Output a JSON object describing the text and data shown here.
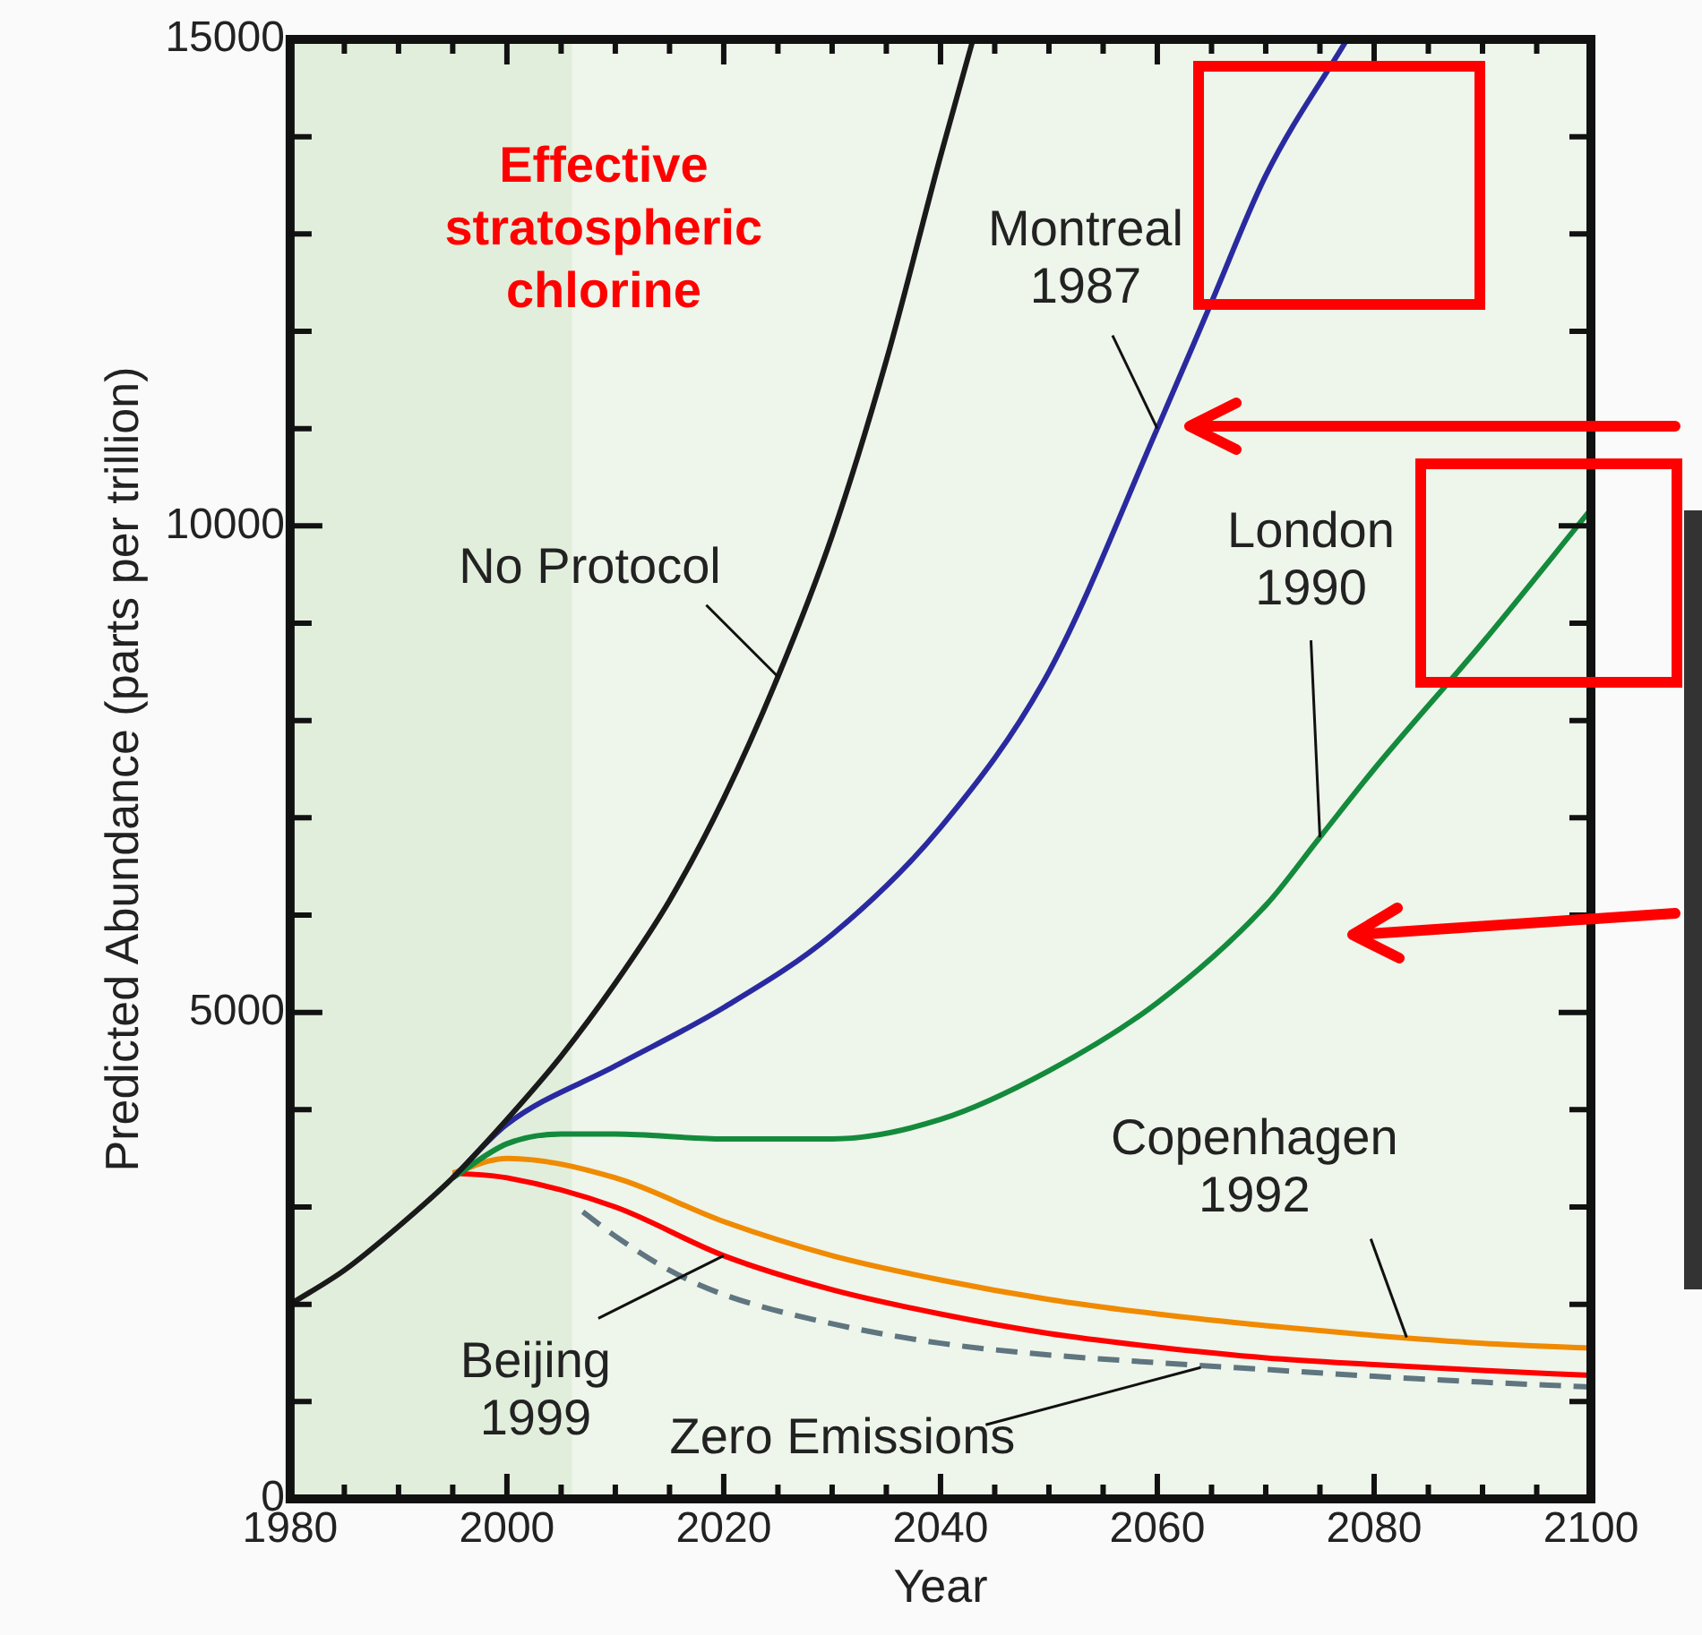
{
  "chart_data": {
    "type": "line",
    "title": "Effective stratospheric chlorine",
    "xlabel": "Year",
    "ylabel": "Predicted Abundance (parts per trillion)",
    "xlim": [
      1980,
      2100
    ],
    "xticks": [
      1980,
      {
        "value": 1985,
        "label": null
      },
      {
        "value": 1990,
        "label": null
      },
      {
        "value": 1995,
        "label": null
      },
      2000,
      {
        "value": 2005,
        "label": null
      },
      {
        "value": 2010,
        "label": null
      },
      {
        "value": 2015,
        "label": null
      },
      2020,
      {
        "value": 2025,
        "label": null
      },
      {
        "value": 2030,
        "label": null
      },
      {
        "value": 2035,
        "label": null
      },
      2040,
      {
        "value": 2045,
        "label": null
      },
      {
        "value": 2050,
        "label": null
      },
      {
        "value": 2055,
        "label": null
      },
      2060,
      {
        "value": 2065,
        "label": null
      },
      {
        "value": 2070,
        "label": null
      },
      {
        "value": 2075,
        "label": null
      },
      2080,
      {
        "value": 2085,
        "label": null
      },
      {
        "value": 2090,
        "label": null
      },
      {
        "value": 2095,
        "label": null
      },
      2100
    ],
    "ylim": [
      0,
      15000
    ],
    "yticks": [
      0,
      {
        "value": 1000,
        "label": null
      },
      {
        "value": 2000,
        "label": null
      },
      {
        "value": 3000,
        "label": null
      },
      {
        "value": 4000,
        "label": null
      },
      5000,
      {
        "value": 6000,
        "label": null
      },
      {
        "value": 7000,
        "label": null
      },
      {
        "value": 8000,
        "label": null
      },
      {
        "value": 9000,
        "label": null
      },
      10000,
      {
        "value": 11000,
        "label": null
      },
      {
        "value": 12000,
        "label": null
      },
      {
        "value": 13000,
        "label": null
      },
      {
        "value": 14000,
        "label": null
      },
      15000
    ],
    "grid": false,
    "legend": false,
    "marker": "none",
    "bands": [
      {
        "axis": "x",
        "from": 1980,
        "to": 2006,
        "color": "#e2eedc"
      }
    ],
    "series": [
      {
        "color": "#1a1a1a",
        "x": [
          1980,
          1985,
          1990,
          1995,
          2000,
          2005,
          2010,
          2015,
          2020,
          2025,
          2030,
          2035,
          2040,
          2043
        ],
        "values": [
          2000,
          2350,
          2800,
          3300,
          3900,
          4550,
          5300,
          6150,
          7200,
          8450,
          9900,
          11700,
          13800,
          15000
        ]
      },
      {
        "color": "#2a2aa0",
        "x": [
          1995,
          2000,
          2010,
          2020,
          2030,
          2040,
          2050,
          2060,
          2065,
          2070,
          2077.5
        ],
        "values": [
          3300,
          3850,
          4450,
          5050,
          5800,
          6900,
          8500,
          11000,
          12300,
          13600,
          15000
        ]
      },
      {
        "color": "#148a3c",
        "x": [
          1995,
          2000,
          2005,
          2010,
          2020,
          2030,
          2040,
          2050,
          2060,
          2070,
          2075,
          2080,
          2090,
          2100
        ],
        "values": [
          3300,
          3650,
          3750,
          3750,
          3700,
          3700,
          3900,
          4400,
          5100,
          6100,
          6800,
          7500,
          8800,
          10170
        ]
      },
      {
        "color": "#f08a00",
        "x": [
          1995,
          2000,
          2010,
          2020,
          2030,
          2040,
          2050,
          2060,
          2070,
          2080,
          2090,
          2100
        ],
        "values": [
          3350,
          3500,
          3300,
          2850,
          2500,
          2250,
          2050,
          1900,
          1780,
          1680,
          1600,
          1550
        ]
      },
      {
        "color": "#ff0000",
        "x": [
          1995,
          2000,
          2010,
          2020,
          2030,
          2040,
          2050,
          2060,
          2070,
          2080,
          2090,
          2100
        ],
        "values": [
          3350,
          3300,
          3000,
          2500,
          2150,
          1900,
          1700,
          1560,
          1450,
          1380,
          1320,
          1270
        ]
      },
      {
        "color": "#5f7580",
        "line_style": "dashed",
        "x": [
          2007,
          2010,
          2015,
          2020,
          2030,
          2040,
          2050,
          2060,
          2070,
          2080,
          2090,
          2100
        ],
        "values": [
          2950,
          2700,
          2350,
          2100,
          1800,
          1600,
          1480,
          1400,
          1330,
          1260,
          1200,
          1150
        ]
      }
    ],
    "annotations": [
      {
        "text": "No Protocol",
        "x": 2025,
        "y": 8450
      },
      {
        "text": "Montreal\n1987",
        "x": 2060,
        "y": 11000
      },
      {
        "text": "London\n1990",
        "x": 2075,
        "y": 6800
      },
      {
        "text": "Copenhagen\n1992",
        "x": 2083,
        "y": 1660
      },
      {
        "text": "Beijing\n1999",
        "x": 2020,
        "y": 2500
      },
      {
        "text": "Zero Emissions",
        "x": 2064,
        "y": 1350
      }
    ]
  }
}
